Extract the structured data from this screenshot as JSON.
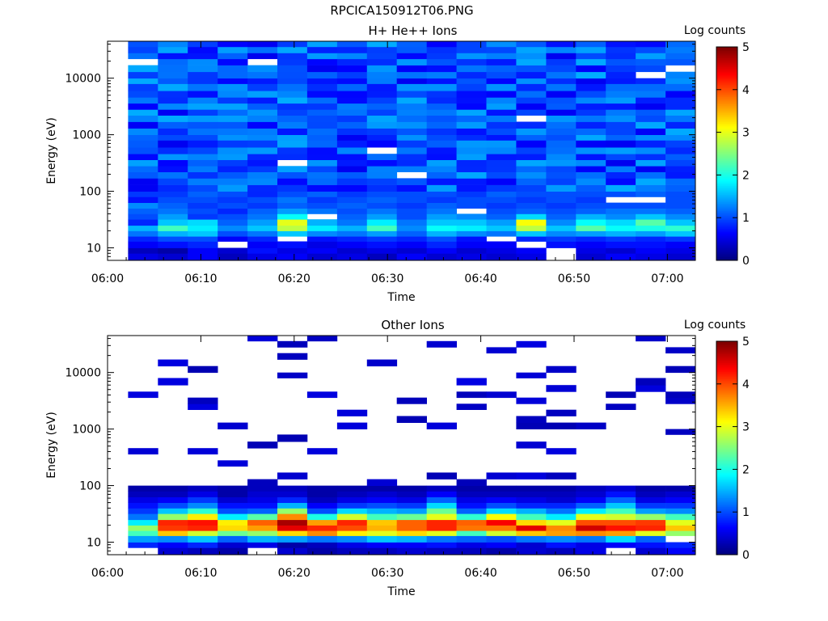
{
  "page_title": "RPCICA150912T06.PNG",
  "chart_data": [
    {
      "type": "heatmap",
      "title": "H+ He++ Ions",
      "xlabel": "Time",
      "ylabel": "Energy (eV)",
      "x_ticks": [
        "06:00",
        "06:10",
        "06:20",
        "06:30",
        "06:40",
        "06:50",
        "07:00"
      ],
      "x_tick_minutes": [
        0,
        10,
        20,
        30,
        40,
        50,
        60
      ],
      "xlim_minutes": [
        0,
        63
      ],
      "y_scale": "log",
      "ylim": [
        6,
        45000
      ],
      "y_ticks": [
        "10",
        "100",
        "1000",
        "10000"
      ],
      "y_tick_values": [
        10,
        100,
        1000,
        10000
      ],
      "colorbar": {
        "label": "Log counts",
        "range": [
          0,
          5
        ],
        "ticks": [
          "0",
          "1",
          "2",
          "3",
          "4",
          "5"
        ]
      },
      "time_bins_minutes": [
        2.2,
        5.4,
        8.6,
        11.8,
        15.0,
        18.2,
        21.4,
        24.6,
        27.8,
        31.0,
        34.2,
        37.4,
        40.6,
        43.8,
        47.0,
        50.2,
        53.4,
        56.6,
        59.8,
        63.0
      ],
      "energy_bins_eV": [
        6,
        8,
        10,
        13,
        16,
        20,
        25,
        32,
        40,
        50,
        63,
        80,
        100,
        130,
        170,
        220,
        280,
        360,
        460,
        600,
        800,
        1000,
        1300,
        1700,
        2200,
        2800,
        3600,
        4600,
        6000,
        8000,
        10000,
        13000,
        17000,
        22000,
        28000,
        36000,
        45000
      ],
      "low_energy_profiles": [
        [
          0.5,
          0.3,
          0.6,
          0.8,
          1.2,
          1.5,
          0.8,
          1.0,
          1.1,
          1.3,
          0.7,
          0.9
        ],
        [
          0.4,
          0.2,
          0.7,
          1.0,
          1.5,
          2.2,
          1.6,
          1.4,
          1.2,
          1.1,
          1.0,
          0.9
        ],
        [
          0.6,
          0.6,
          0.8,
          1.0,
          1.6,
          1.8,
          1.7,
          0.9,
          1.0,
          0.9,
          1.0,
          1.1
        ],
        [
          0.3,
          0.4,
          null,
          0.6,
          1.0,
          1.3,
          1.1,
          1.0,
          0.8,
          1.0,
          0.9,
          1.0
        ],
        [
          0.5,
          0.7,
          0.6,
          0.8,
          1.2,
          1.6,
          1.4,
          1.2,
          1.1,
          0.9,
          1.0,
          0.8
        ],
        [
          0.6,
          0.5,
          0.7,
          null,
          1.6,
          2.8,
          3.0,
          1.9,
          1.4,
          1.1,
          1.2,
          1.0
        ],
        [
          0.4,
          0.6,
          0.5,
          0.7,
          1.3,
          1.8,
          1.5,
          null,
          1.2,
          1.0,
          0.9,
          1.1
        ],
        [
          0.5,
          0.4,
          0.6,
          0.8,
          1.2,
          1.5,
          1.2,
          1.1,
          1.0,
          1.1,
          1.0,
          0.9
        ],
        [
          0.3,
          0.5,
          0.7,
          0.9,
          1.4,
          2.2,
          1.8,
          1.4,
          1.2,
          1.0,
          1.1,
          1.0
        ],
        [
          0.6,
          0.4,
          0.6,
          0.8,
          1.1,
          1.3,
          1.2,
          1.0,
          1.0,
          0.9,
          1.0,
          1.0
        ],
        [
          0.4,
          0.6,
          0.8,
          1.0,
          1.5,
          1.9,
          1.6,
          1.4,
          1.2,
          1.1,
          0.9,
          1.0
        ],
        [
          0.5,
          0.4,
          0.6,
          0.7,
          1.3,
          1.8,
          1.6,
          1.3,
          null,
          1.0,
          1.0,
          0.9
        ],
        [
          0.4,
          0.5,
          0.6,
          null,
          1.2,
          1.6,
          1.4,
          1.1,
          1.0,
          0.9,
          1.0,
          1.1
        ],
        [
          0.5,
          0.6,
          null,
          0.8,
          1.6,
          2.8,
          3.1,
          1.7,
          1.1,
          1.0,
          0.9,
          1.0
        ],
        [
          null,
          null,
          0.7,
          0.9,
          1.3,
          1.6,
          1.3,
          1.1,
          1.0,
          0.9,
          1.0,
          1.0
        ],
        [
          0.4,
          0.5,
          0.6,
          0.8,
          1.4,
          2.3,
          1.9,
          1.5,
          1.1,
          1.0,
          0.9,
          1.0
        ],
        [
          0.6,
          0.4,
          0.7,
          0.9,
          1.5,
          1.9,
          1.7,
          1.3,
          1.2,
          1.0,
          null,
          1.0
        ],
        [
          0.5,
          0.6,
          0.7,
          0.8,
          1.4,
          2.0,
          2.3,
          1.6,
          1.2,
          1.0,
          null,
          1.1
        ],
        [
          0.4,
          0.5,
          0.6,
          0.9,
          1.6,
          2.1,
          1.6,
          1.3,
          1.1,
          1.0,
          1.0,
          1.0
        ],
        [
          0.4,
          0.5,
          0.6,
          0.9,
          1.6,
          2.1,
          1.6,
          1.3,
          1.1,
          1.0,
          1.0,
          1.0
        ]
      ]
    },
    {
      "type": "heatmap",
      "title": "Other Ions",
      "xlabel": "Time",
      "ylabel": "Energy (eV)",
      "x_ticks": [
        "06:00",
        "06:10",
        "06:20",
        "06:30",
        "06:40",
        "06:50",
        "07:00"
      ],
      "x_tick_minutes": [
        0,
        10,
        20,
        30,
        40,
        50,
        60
      ],
      "xlim_minutes": [
        0,
        63
      ],
      "y_scale": "log",
      "ylim": [
        6,
        45000
      ],
      "y_ticks": [
        "10",
        "100",
        "1000",
        "10000"
      ],
      "y_tick_values": [
        10,
        100,
        1000,
        10000
      ],
      "colorbar": {
        "label": "Log counts",
        "range": [
          0,
          5
        ],
        "ticks": [
          "0",
          "1",
          "2",
          "3",
          "4",
          "5"
        ]
      },
      "time_bins_minutes": [
        2.2,
        5.4,
        8.6,
        11.8,
        15.0,
        18.2,
        21.4,
        24.6,
        27.8,
        31.0,
        34.2,
        37.4,
        40.6,
        43.8,
        47.0,
        50.2,
        53.4,
        56.6,
        59.8,
        63.0
      ],
      "energy_bins_eV": [
        6,
        8,
        10,
        13,
        16,
        20,
        25,
        32,
        40,
        50,
        63,
        80,
        100,
        130,
        170,
        220,
        280,
        360,
        460,
        600,
        800,
        1000,
        1300,
        1700,
        2200,
        2800,
        3600,
        4600,
        6000,
        8000,
        10000,
        13000,
        17000,
        22000,
        28000,
        36000,
        45000
      ],
      "low_energy_profiles": [
        [
          null,
          0.8,
          1.4,
          2.2,
          2.6,
          1.8,
          1.2,
          0.9,
          0.7,
          0.5,
          0.3,
          0.2
        ],
        [
          0.4,
          0.6,
          1.3,
          3.4,
          4.1,
          4.2,
          2.6,
          1.6,
          1.0,
          0.6,
          0.3,
          0.2
        ],
        [
          0.3,
          0.8,
          1.6,
          2.9,
          4.2,
          4.3,
          3.2,
          2.1,
          1.3,
          0.9,
          0.5,
          0.3
        ],
        [
          0.2,
          0.4,
          1.1,
          2.4,
          3.3,
          3.2,
          1.8,
          1.0,
          0.7,
          0.4,
          0.2,
          0.2
        ],
        [
          null,
          0.5,
          1.5,
          2.6,
          3.6,
          3.9,
          2.3,
          1.1,
          0.7,
          0.5,
          0.4,
          0.3
        ],
        [
          0.4,
          0.2,
          1.4,
          3.3,
          4.5,
          4.8,
          3.7,
          2.6,
          1.5,
          0.8,
          0.4,
          0.3
        ],
        [
          0.2,
          0.3,
          1.2,
          3.7,
          4.2,
          3.6,
          2.0,
          1.0,
          0.6,
          0.3,
          0.2,
          0.2
        ],
        [
          0.3,
          0.5,
          1.3,
          3.2,
          4.0,
          4.2,
          2.9,
          1.7,
          0.9,
          0.5,
          0.3,
          0.2
        ],
        [
          0.3,
          0.6,
          1.6,
          3.0,
          3.5,
          3.4,
          2.2,
          1.5,
          1.0,
          0.6,
          0.4,
          0.2
        ],
        [
          0.4,
          0.6,
          1.5,
          3.3,
          3.9,
          3.9,
          2.4,
          1.4,
          0.9,
          0.5,
          0.3,
          0.2
        ],
        [
          0.3,
          0.7,
          1.2,
          3.0,
          4.2,
          4.2,
          3.0,
          2.4,
          1.7,
          1.1,
          0.6,
          0.3
        ],
        [
          0.3,
          0.5,
          1.1,
          2.2,
          3.8,
          3.9,
          2.1,
          1.1,
          0.7,
          0.5,
          0.3,
          0.2
        ],
        [
          0.2,
          0.6,
          1.0,
          2.9,
          3.8,
          4.4,
          3.1,
          1.7,
          1.0,
          0.6,
          0.3,
          0.2
        ],
        [
          0.4,
          0.4,
          1.2,
          3.4,
          4.5,
          3.3,
          2.2,
          1.5,
          0.8,
          0.5,
          0.3,
          0.2
        ],
        [
          0.3,
          0.7,
          1.3,
          3.6,
          3.7,
          3.0,
          1.8,
          1.2,
          0.8,
          0.4,
          0.3,
          0.2
        ],
        [
          0.5,
          0.5,
          1.2,
          3.7,
          4.6,
          4.0,
          3.0,
          1.8,
          1.1,
          0.6,
          0.4,
          0.3
        ],
        [
          null,
          0.6,
          1.7,
          3.6,
          4.3,
          4.0,
          2.9,
          2.2,
          1.6,
          1.1,
          0.7,
          0.4
        ],
        [
          0.4,
          0.7,
          1.1,
          3.0,
          4.2,
          4.1,
          2.6,
          1.4,
          0.9,
          0.5,
          0.3,
          0.2
        ],
        [
          0.6,
          0.8,
          null,
          2.6,
          3.4,
          3.0,
          2.2,
          1.3,
          0.9,
          0.6,
          0.4,
          0.2
        ],
        [
          0.6,
          0.8,
          null,
          2.6,
          3.4,
          3.0,
          2.2,
          1.3,
          0.9,
          0.6,
          0.4,
          0.2
        ]
      ]
    }
  ]
}
